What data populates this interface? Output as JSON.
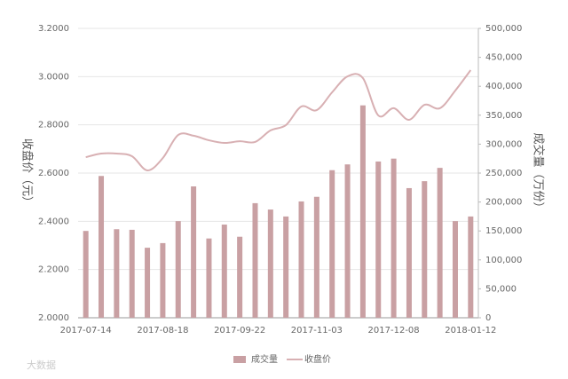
{
  "chart_data": {
    "type": "combo",
    "categories": [
      "2017-07-14",
      null,
      null,
      null,
      null,
      "2017-08-18",
      null,
      null,
      null,
      null,
      "2017-09-22",
      null,
      null,
      null,
      null,
      "2017-11-03",
      null,
      null,
      null,
      null,
      "2017-12-08",
      null,
      null,
      null,
      null,
      "2018-01-12"
    ],
    "series": [
      {
        "name": "成交量",
        "type": "bar",
        "axis": "y2",
        "color": "#c9a0a3",
        "values": [
          150000,
          245000,
          153000,
          152000,
          121000,
          129000,
          167000,
          227000,
          137000,
          161000,
          140000,
          198000,
          187000,
          175000,
          201000,
          209000,
          255000,
          265000,
          367000,
          270000,
          275000,
          224000,
          236000,
          259000,
          167000,
          175000
        ]
      },
      {
        "name": "收盘价",
        "type": "line",
        "axis": "y",
        "color": "#d8b0b3",
        "values": [
          2.666,
          2.681,
          2.681,
          2.67,
          2.611,
          2.662,
          2.758,
          2.755,
          2.736,
          2.725,
          2.732,
          2.729,
          2.777,
          2.799,
          2.876,
          2.861,
          2.935,
          3.001,
          2.994,
          2.839,
          2.869,
          2.821,
          2.883,
          2.869,
          2.942,
          3.027
        ]
      }
    ],
    "ylabel": "收盘价（元）",
    "y2label": "成交量（万份）",
    "ylim": [
      2.0,
      3.2
    ],
    "yticks": [
      {
        "value": 2.0,
        "label": "2.0000"
      },
      {
        "value": 2.2,
        "label": "2.2000"
      },
      {
        "value": 2.4,
        "label": "2.4000"
      },
      {
        "value": 2.6,
        "label": "2.6000"
      },
      {
        "value": 2.8,
        "label": "2.8000"
      },
      {
        "value": 3.0,
        "label": "3.0000"
      },
      {
        "value": 3.2,
        "label": "3.2000"
      }
    ],
    "y2lim": [
      0,
      500000
    ],
    "y2ticks": [
      0,
      {
        "value": 50000,
        "label": "50,000"
      },
      {
        "value": 100000,
        "label": "100,000"
      },
      {
        "value": 150000,
        "label": "150,000"
      },
      {
        "value": 200000,
        "label": "200,000"
      },
      {
        "value": 250000,
        "label": "250,000"
      },
      {
        "value": 300000,
        "label": "300,000"
      },
      {
        "value": 350000,
        "label": "350,000"
      },
      {
        "value": 400000,
        "label": "400,000"
      },
      {
        "value": 450000,
        "label": "450,000"
      },
      {
        "value": 500000,
        "label": "500,000"
      }
    ],
    "grid": true,
    "legend": "bottom",
    "watermark": "大数据"
  }
}
